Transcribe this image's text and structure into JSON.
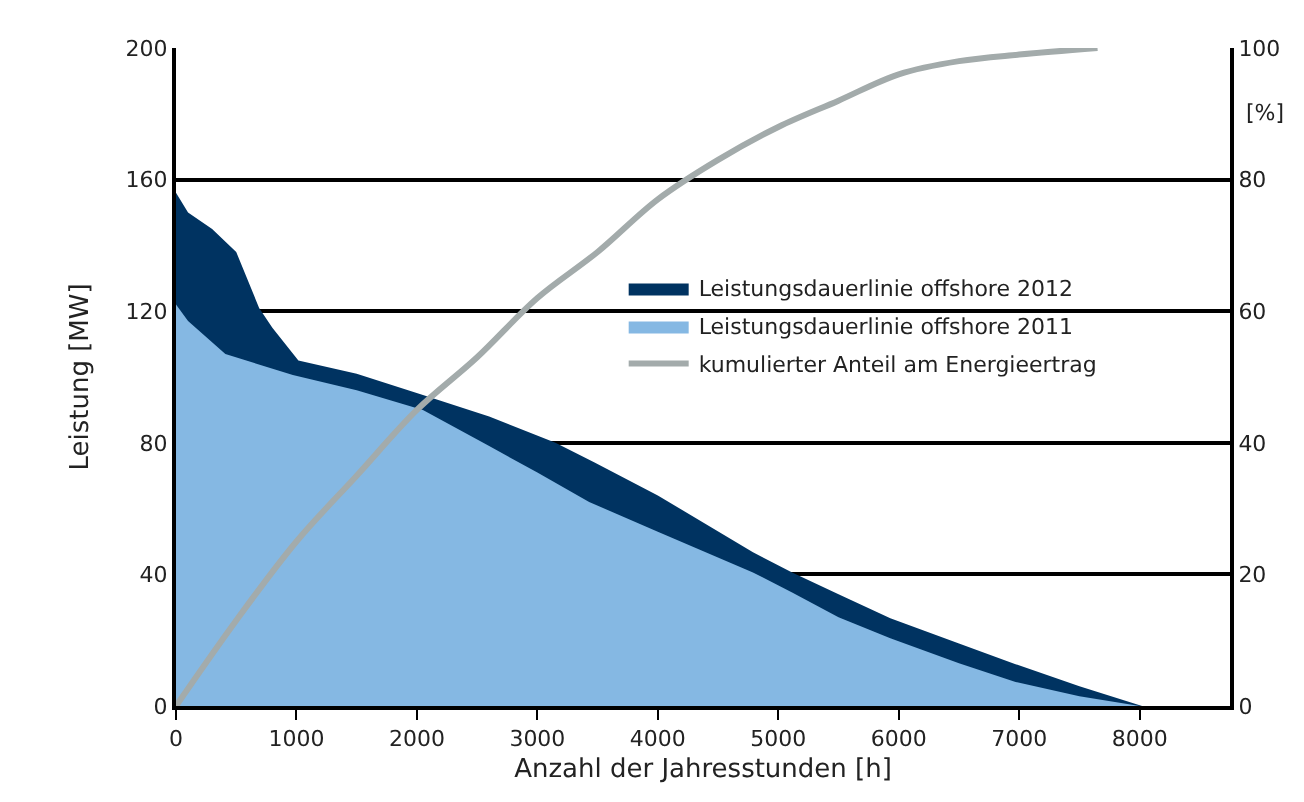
{
  "chart_data": {
    "type": "area",
    "xlabel": "Anzahl der Jahresstunden [h]",
    "ylabel": "Leistung [MW]",
    "y2label": "[%]",
    "xlim": [
      0,
      8750
    ],
    "xticks": [
      0,
      1000,
      2000,
      3000,
      4000,
      5000,
      6000,
      7000,
      8000
    ],
    "ylim": [
      0,
      200
    ],
    "yticks": [
      0,
      40,
      80,
      120,
      160,
      200
    ],
    "y2lim": [
      0,
      100
    ],
    "y2ticks": [
      0,
      20,
      40,
      60,
      80,
      100
    ],
    "grid": "y",
    "legend": "right",
    "series": [
      {
        "name": "Leistungsdauerlinie offshore 2012",
        "color": "#003361",
        "x": [
          0,
          100,
          300,
          500,
          690,
          800,
          1016,
          1500,
          2050,
          2600,
          3150,
          3475,
          4000,
          4790,
          5115,
          5500,
          5930,
          6500,
          6970,
          7500,
          8020
        ],
        "values": [
          156,
          150,
          145,
          138,
          121,
          115,
          105,
          101,
          94.5,
          88,
          80,
          74,
          64,
          46.7,
          40.6,
          34,
          26.7,
          19,
          12.7,
          6,
          0
        ]
      },
      {
        "name": "Leistungsdauerlinie offshore 2011",
        "color": "#85b8e3",
        "x": [
          0,
          100,
          410,
          970,
          1500,
          2050,
          2600,
          3000,
          3430,
          4000,
          4790,
          5115,
          5500,
          5930,
          6500,
          6970,
          7500,
          8000
        ],
        "values": [
          122,
          117,
          107,
          100.6,
          96,
          90,
          79,
          71,
          62,
          53,
          40.6,
          34.5,
          27,
          20.6,
          13,
          7.3,
          3,
          0
        ]
      },
      {
        "name": "kumulierter Anteil am Energieertrag",
        "color": "#a3abab",
        "type": "line",
        "axis": "y2",
        "x": [
          0,
          500,
          1000,
          1500,
          2000,
          2500,
          3000,
          3500,
          4000,
          4500,
          5000,
          5500,
          6000,
          6500,
          7000,
          7650
        ],
        "values": [
          0,
          13,
          25,
          35,
          45,
          53,
          62,
          69,
          77,
          83,
          88,
          92,
          96,
          98,
          99,
          100
        ]
      }
    ]
  }
}
